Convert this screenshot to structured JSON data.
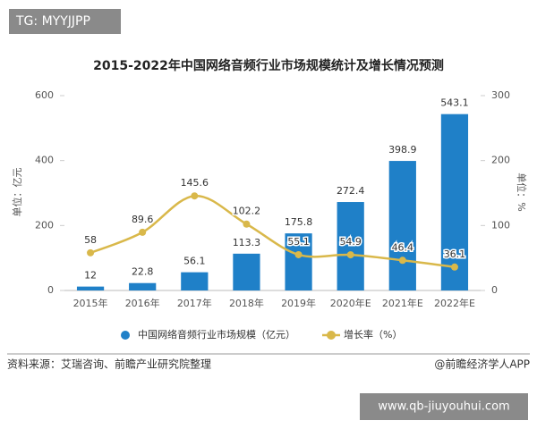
{
  "badge": "TG: MYYJJPP",
  "chart_data": {
    "type": "bar-line",
    "title": "2015-2022年中国网络音频行业市场规模统计及增长情况预测",
    "y_label": "单位：亿元",
    "y2_label": "单位：%",
    "categories": [
      "2015年",
      "2016年",
      "2017年",
      "2018年",
      "2019年",
      "2020年E",
      "2021年E",
      "2022年E"
    ],
    "series": [
      {
        "name": "中国网络音频行业市场规模（亿元）",
        "type": "bar",
        "color": "#1f80c8",
        "values": [
          12,
          22.8,
          56.1,
          113.3,
          175.8,
          272.4,
          398.9,
          543.1
        ]
      },
      {
        "name": "增长率（%）",
        "type": "line",
        "color": "#d9b84a",
        "axis": "y2",
        "values": [
          58,
          89.6,
          145.6,
          102.2,
          55.1,
          54.9,
          46.4,
          36.1
        ]
      }
    ],
    "ylim": [
      0,
      600
    ],
    "yticks": [
      0,
      200,
      400,
      600
    ],
    "y2lim": [
      0,
      300
    ],
    "y2ticks": [
      0,
      100,
      200,
      300
    ],
    "grid": false
  },
  "footer": {
    "source": "资料来源：艾瑞咨询、前瞻产业研究院整理",
    "credit": "@前瞻经济学人APP",
    "watermark": "www.qb-jiuyouhui.com"
  }
}
